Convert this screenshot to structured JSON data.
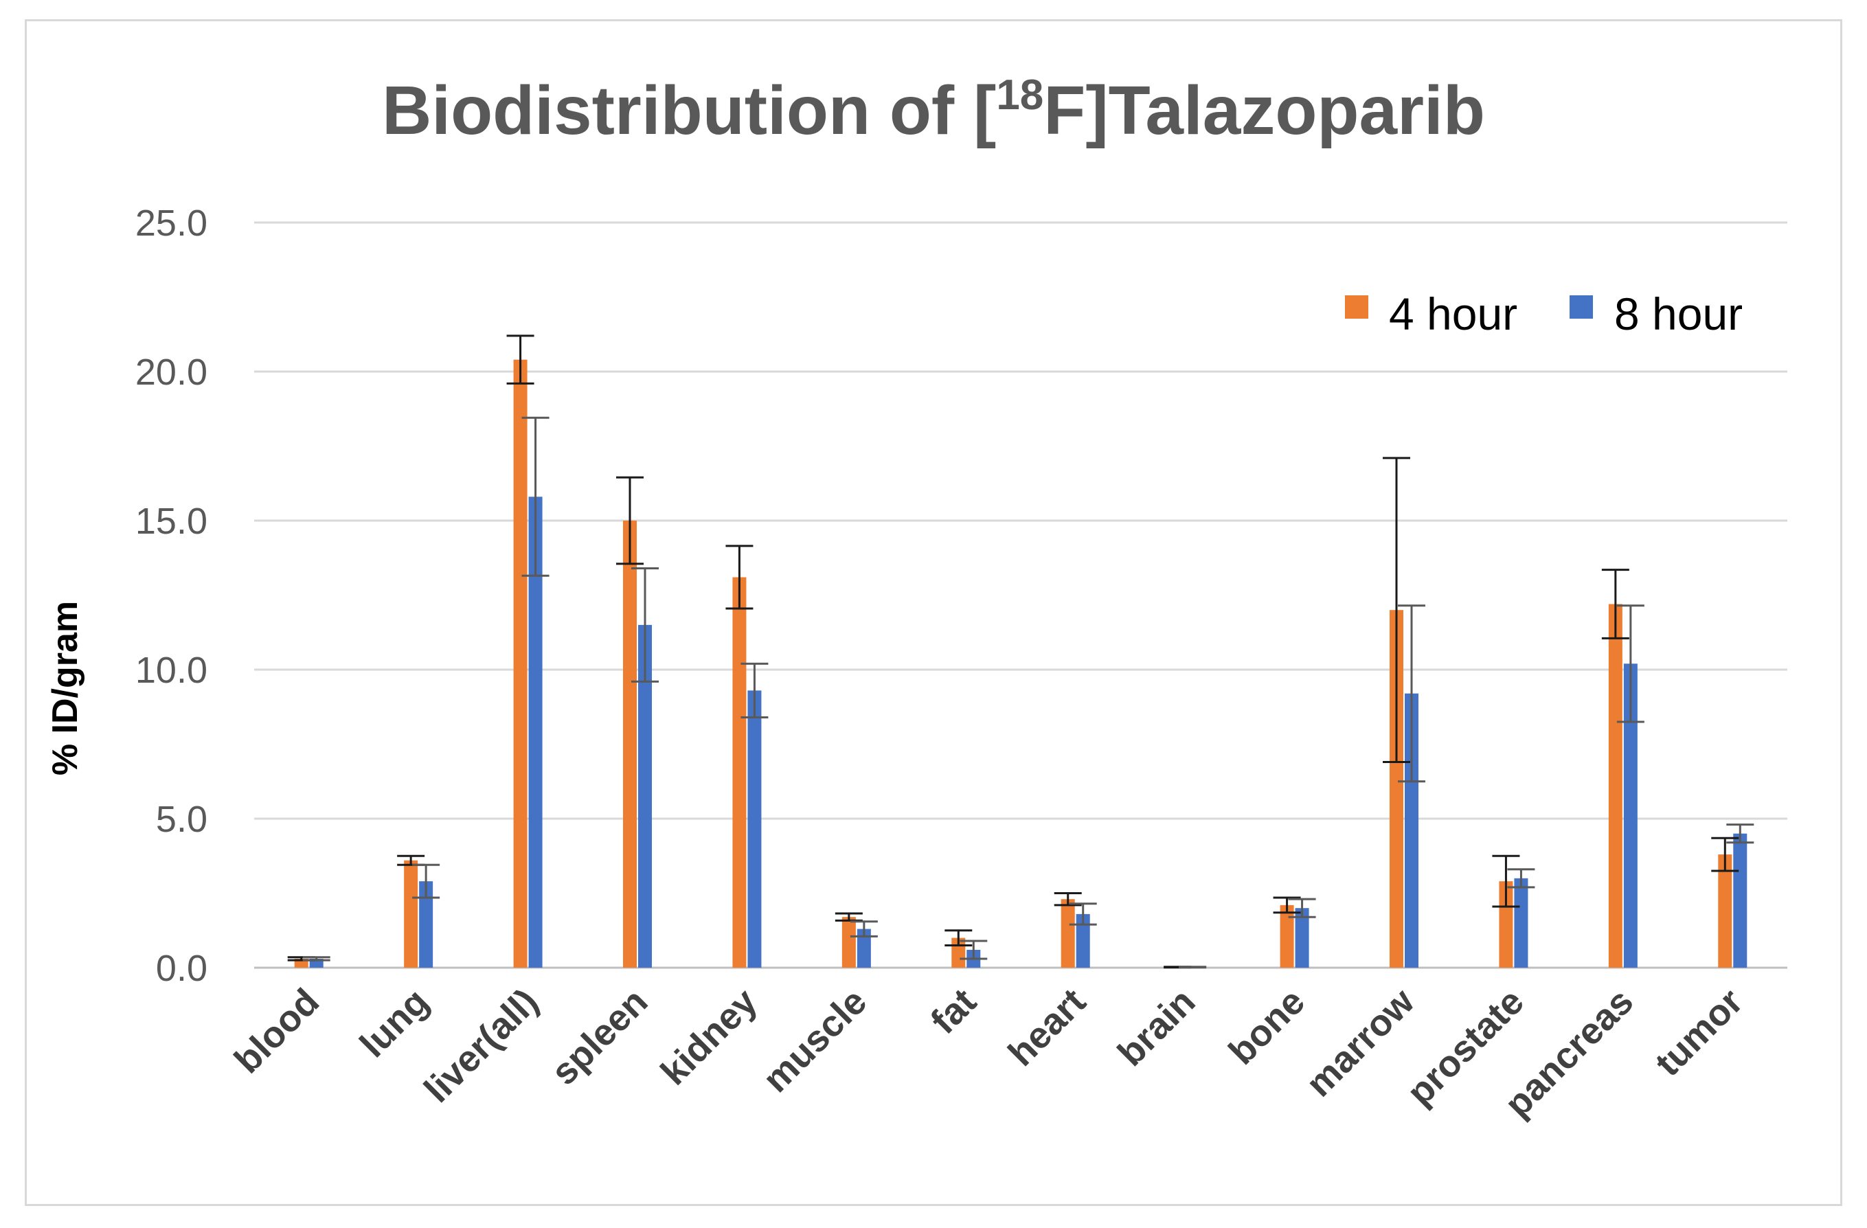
{
  "chart_data": {
    "type": "bar",
    "title_main": "Biodistribution of [",
    "title_sup": "18",
    "title_rest": "F]Talazoparib",
    "ylabel": "% ID/gram",
    "xlabel": "",
    "ylim": [
      0,
      25
    ],
    "yticks": [
      0,
      5,
      10,
      15,
      20,
      25
    ],
    "ytick_labels": [
      "0.0",
      "5.0",
      "10.0",
      "15.0",
      "20.0",
      "25.0"
    ],
    "grid": true,
    "legend_position": "top-right",
    "categories": [
      "blood",
      "lung",
      "liver(all)",
      "spleen",
      "kidney",
      "muscle",
      "fat",
      "heart",
      "brain",
      "bone",
      "marrow",
      "prostate",
      "pancreas",
      "tumor"
    ],
    "series": [
      {
        "name": "4 hour",
        "color": "#ed7d31",
        "values": [
          0.3,
          3.6,
          20.4,
          15.0,
          13.1,
          1.7,
          1.0,
          2.3,
          0.02,
          2.1,
          12.0,
          2.9,
          12.2,
          3.8
        ],
        "errors": [
          0.05,
          0.15,
          0.8,
          1.45,
          1.05,
          0.12,
          0.25,
          0.2,
          0.01,
          0.25,
          5.1,
          0.85,
          1.15,
          0.55
        ]
      },
      {
        "name": "8 hour",
        "color": "#4472c4",
        "values": [
          0.3,
          2.9,
          15.8,
          11.5,
          9.3,
          1.3,
          0.6,
          1.8,
          0.02,
          2.0,
          9.2,
          3.0,
          10.2,
          4.5
        ],
        "errors": [
          0.05,
          0.55,
          2.65,
          1.9,
          0.9,
          0.25,
          0.3,
          0.35,
          0.01,
          0.3,
          2.95,
          0.3,
          1.95,
          0.3
        ]
      }
    ]
  }
}
